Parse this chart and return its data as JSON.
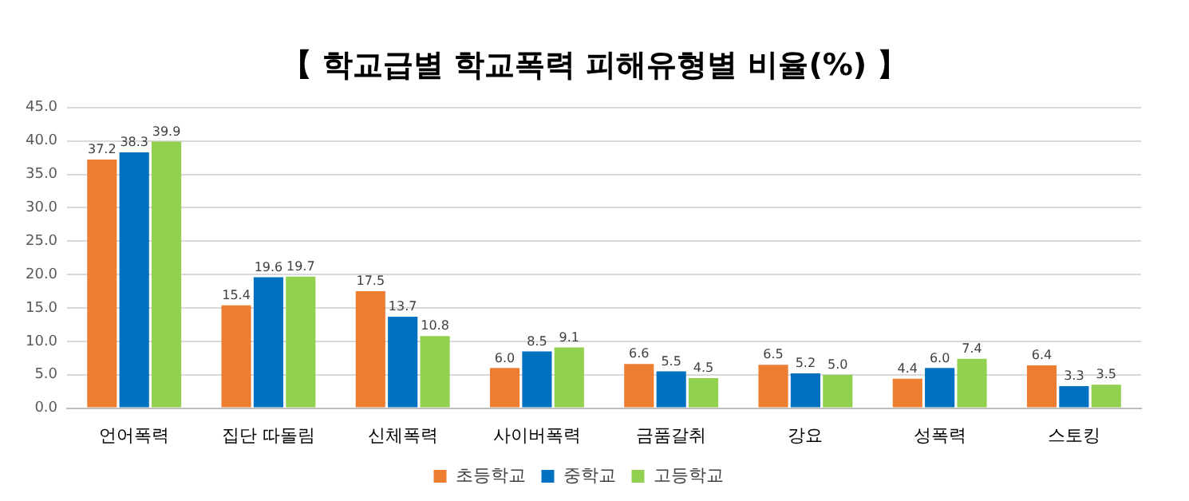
{
  "chart_data": {
    "type": "bar",
    "title": "【 학교급별 학교폭력 피해유형별 비율(%) 】",
    "categories": [
      "언어폭력",
      "집단 따돌림",
      "신체폭력",
      "사이버폭력",
      "금품갈취",
      "강요",
      "성폭력",
      "스토킹"
    ],
    "series": [
      {
        "name": "초등학교",
        "color": "#ed7d31",
        "values": [
          37.2,
          15.4,
          17.5,
          6.0,
          6.6,
          6.5,
          4.4,
          6.4
        ],
        "value_labels": [
          "37.2",
          "15.4",
          "17.5",
          "6.0",
          "6.6",
          "6.5",
          "4.4",
          "6.4"
        ]
      },
      {
        "name": "중학교",
        "color": "#0070c0",
        "values": [
          38.3,
          19.6,
          13.7,
          8.5,
          5.5,
          5.2,
          6.0,
          3.3
        ],
        "value_labels": [
          "38.3",
          "19.6",
          "13.7",
          "8.5",
          "5.5",
          "5.2",
          "6.0",
          "3.3"
        ]
      },
      {
        "name": "고등학교",
        "color": "#92d050",
        "values": [
          39.9,
          19.7,
          10.8,
          9.1,
          4.5,
          5.0,
          7.4,
          3.5
        ],
        "value_labels": [
          "39.9",
          "19.7",
          "10.8",
          "9.1",
          "4.5",
          "5.0",
          "7.4",
          "3.5"
        ]
      }
    ],
    "ylim": [
      0,
      45
    ],
    "yticks": [
      {
        "value": 0,
        "label": "0.0"
      },
      {
        "value": 5,
        "label": "5.0"
      },
      {
        "value": 10,
        "label": "10.0"
      },
      {
        "value": 15,
        "label": "15.0"
      },
      {
        "value": 20,
        "label": "20.0"
      },
      {
        "value": 25,
        "label": "25.0"
      },
      {
        "value": 30,
        "label": "30.0"
      },
      {
        "value": 35,
        "label": "35.0"
      },
      {
        "value": 40,
        "label": "40.0"
      },
      {
        "value": 45,
        "label": "45.0"
      }
    ],
    "grid": "y",
    "legend": "bottom"
  }
}
